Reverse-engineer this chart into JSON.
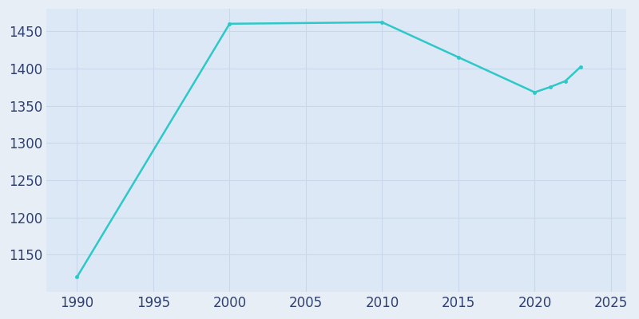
{
  "years": [
    1990,
    2000,
    2010,
    2015,
    2020,
    2021,
    2022,
    2023
  ],
  "population": [
    1120,
    1460,
    1462,
    1415,
    1368,
    1375,
    1383,
    1402
  ],
  "line_color": "#2ec8c8",
  "plot_bg_color": "#dce8f5",
  "figure_bg_color": "#e8eef6",
  "tick_label_color": "#2e4070",
  "grid_color": "#c8d8ea",
  "xlim": [
    1988,
    2026
  ],
  "ylim": [
    1100,
    1480
  ],
  "xticks": [
    1990,
    1995,
    2000,
    2005,
    2010,
    2015,
    2020,
    2025
  ],
  "yticks": [
    1150,
    1200,
    1250,
    1300,
    1350,
    1400,
    1450
  ],
  "line_width": 1.8,
  "marker": "o",
  "marker_size": 3,
  "tick_fontsize": 12
}
